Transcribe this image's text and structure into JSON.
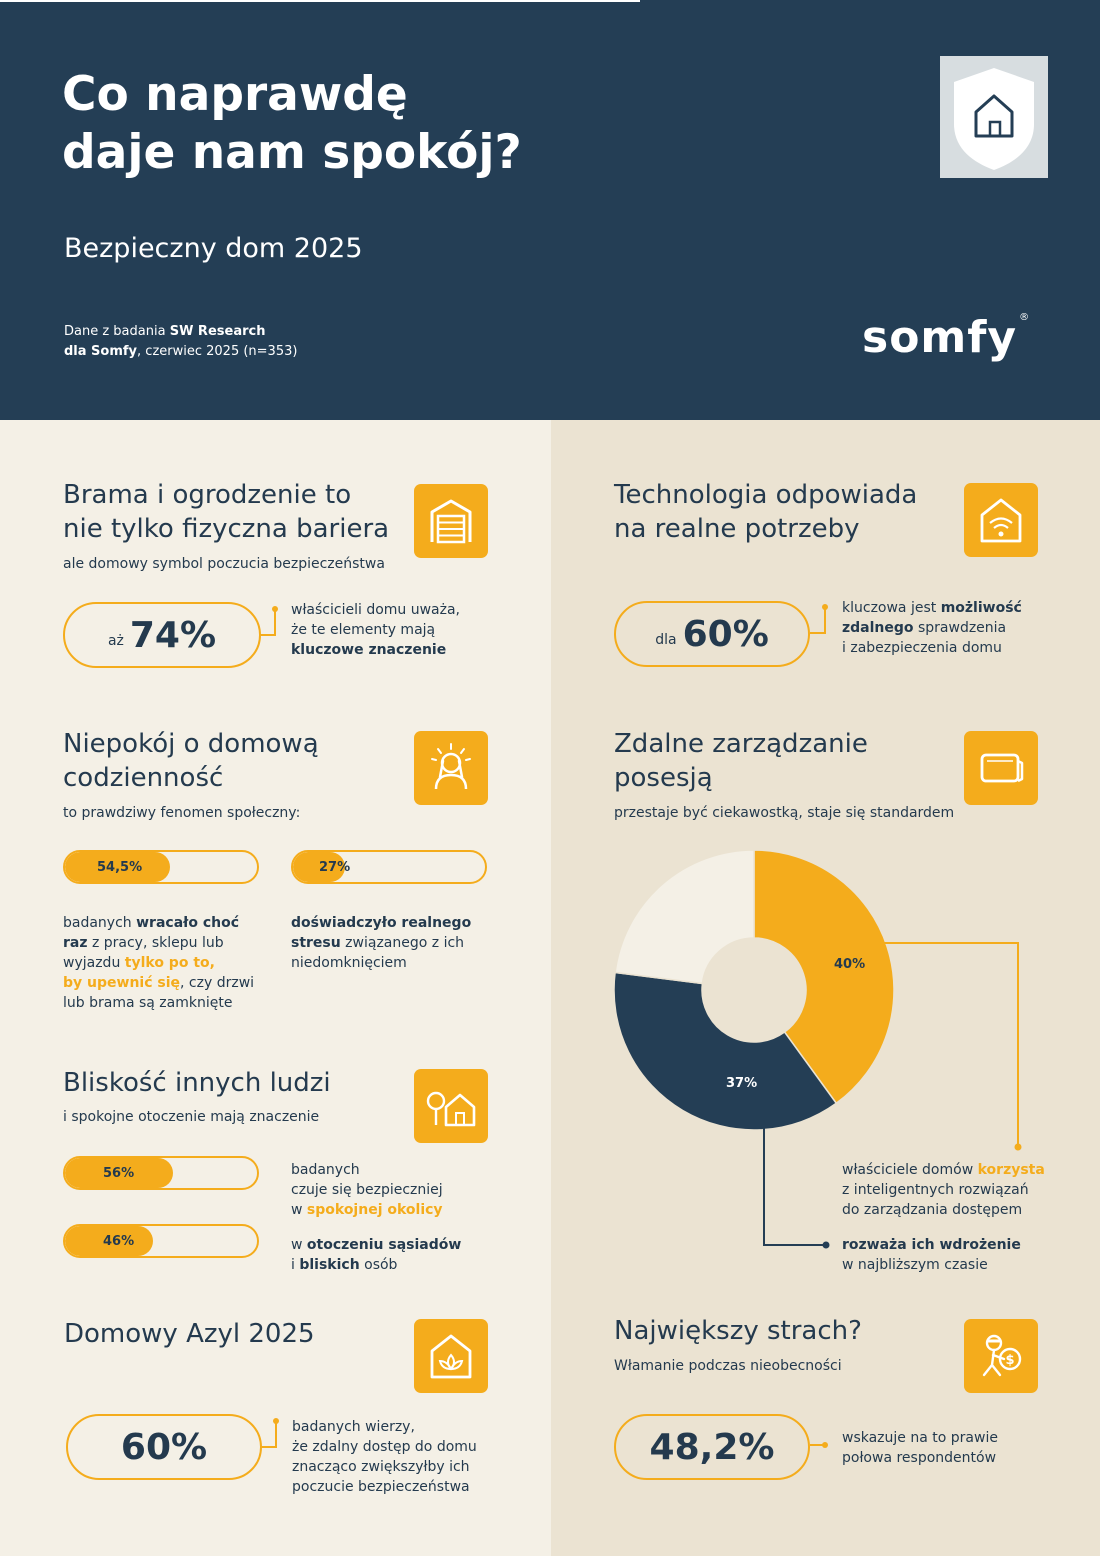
{
  "header": {
    "title_line1": "Co naprawdę",
    "title_line2": "daje nam spokój?",
    "subtitle": "Bezpieczny dom 2025",
    "source_prefix": "Dane z badania ",
    "source_bold1": "SW Research",
    "source_bold2": "dla Somfy",
    "source_rest": ", czerwiec 2025 (n=353)",
    "logo": "somfy",
    "logo_mark": "®"
  },
  "sections": {
    "brama": {
      "title_line1": "Brama i ogrodzenie to",
      "title_line2": "nie tylko fizyczna bariera",
      "subtitle": "ale domowy symbol poczucia bezpieczeństwa",
      "stat_prefix": "aż",
      "stat_value": "74%",
      "note_line1": "właścicieli domu uważa,",
      "note_line2": "że te elementy mają",
      "note_bold": "kluczowe znaczenie",
      "icon": "garage-door-icon"
    },
    "technologia": {
      "title_line1": "Technologia odpowiada",
      "title_line2": "na realne potrzeby",
      "stat_prefix": "dla",
      "stat_value": "60%",
      "note_text1": "kluczowa jest ",
      "note_bold1": "możliwość",
      "note_bold2": "zdalnego",
      "note_text2": " sprawdzenia",
      "note_line3": "i zabezpieczenia domu",
      "icon": "smart-home-wifi-icon"
    },
    "niepokoj": {
      "title_line1": "Niepokój o domową",
      "title_line2": "codzienność",
      "subtitle": "to prawdziwy fenomen społeczny:",
      "bar1_label": "54,5%",
      "bar1_value": 0.545,
      "bar2_label": "27%",
      "bar2_value": 0.27,
      "note1_t1": "badanych ",
      "note1_b1": "wracało choć",
      "note1_b2": "raz",
      "note1_t2": " z pracy, sklepu lub",
      "note1_t3": "wyjazdu ",
      "note1_h1": "tylko po to,",
      "note1_h2": "by upewnić się",
      "note1_t4": ", czy drzwi",
      "note1_t5": "lub brama są zamknięte",
      "note2_b1": "doświadczyło realnego",
      "note2_b2": "stresu",
      "note2_t1": " związanego z ich",
      "note2_t2": "niedomknięciem",
      "icon": "stressed-person-icon"
    },
    "zdalne": {
      "title_line1": "Zdalne zarządzanie",
      "title_line2": "posesją",
      "subtitle": "przestaje być ciekawostką, staje się standardem",
      "note1_t1": "właściciele domów ",
      "note1_h1": "korzysta",
      "note1_t2": "z inteligentnych rozwiązań",
      "note1_t3": "do zarządzania dostępem",
      "note2_b1": "rozważa ich wdrożenie",
      "note2_t1": "w najbliższym czasie",
      "icon": "remote-control-icon"
    },
    "bliskosc": {
      "title": "Bliskość innych ludzi",
      "subtitle": "i spokojne otoczenie mają znaczenie",
      "bar1_label": "56%",
      "bar1_value": 0.56,
      "bar2_label": "46%",
      "bar2_value": 0.46,
      "note1_t1": "badanych",
      "note1_t2": "czuje się bezpieczniej",
      "note1_t3": "w ",
      "note1_h1": "spokojnej okolicy",
      "note2_t1": "w ",
      "note2_b1": "otoczeniu sąsiadów",
      "note2_t2": "i ",
      "note2_b2": "bliskich",
      "note2_t3": " osób",
      "icon": "house-tree-icon"
    },
    "azyl": {
      "title": "Domowy Azyl 2025",
      "stat_value": "60%",
      "note_line1": "badanych wierzy,",
      "note_line2": "że zdalny dostęp do domu",
      "note_line3": "znacząco zwiększyłby ich",
      "note_line4": "poczucie bezpieczeństwa",
      "icon": "lotus-house-icon"
    },
    "strach": {
      "title": "Największy strach?",
      "subtitle": "Włamanie podczas nieobecności",
      "stat_value": "48,2%",
      "note_line1": "wskazuje na to prawie",
      "note_line2": "połowa respondentów",
      "icon": "burglar-icon"
    }
  },
  "chart_data": {
    "type": "pie",
    "title": "",
    "slices": [
      {
        "label": "40%",
        "value": 40,
        "color": "#f4ac1c"
      },
      {
        "label": "37%",
        "value": 37,
        "color": "#243e55"
      },
      {
        "label": "",
        "value": 23,
        "color": "#f4f0e6"
      }
    ]
  },
  "colors": {
    "navy": "#243e55",
    "yellow": "#f4ac1c",
    "cream": "#f4f0e6",
    "beige": "#ebe3d2"
  }
}
